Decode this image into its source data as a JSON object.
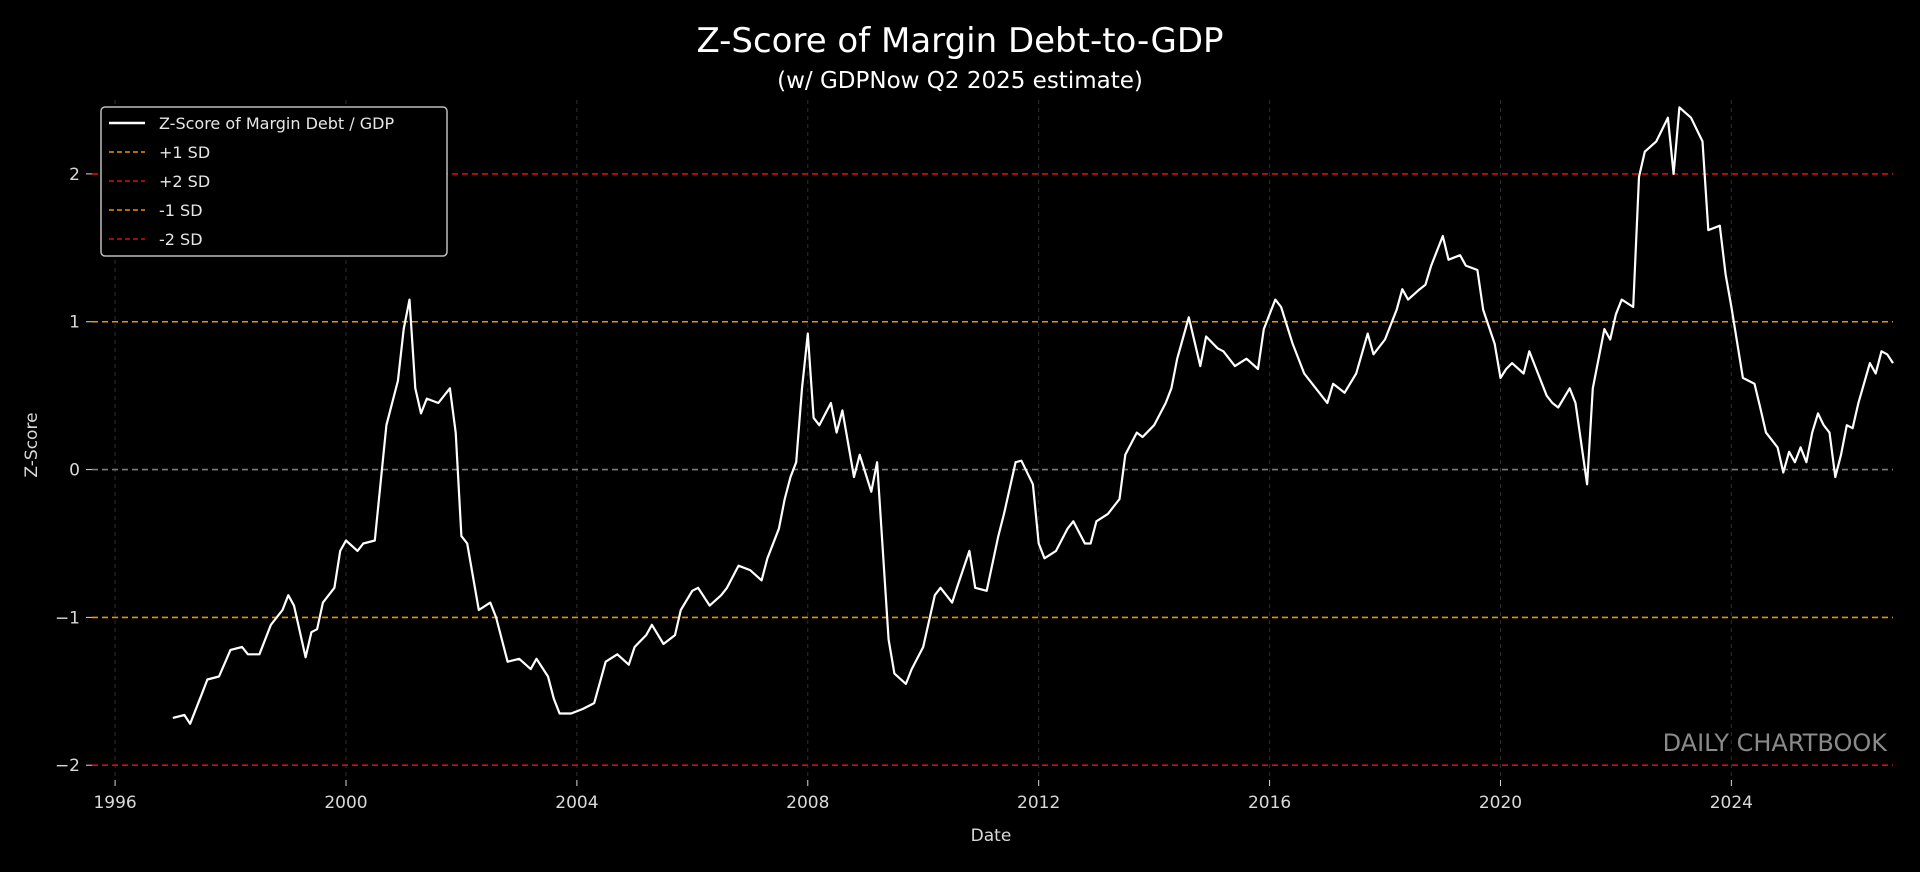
{
  "chart_data": {
    "type": "line",
    "title": "Z-Score of Margin Debt-to-GDP",
    "subtitle": "(w/ GDPNow Q2 2025 estimate)",
    "xlabel": "Date",
    "ylabel": "Z-Score",
    "xlim": [
      1995.6,
      2026.8
    ],
    "ylim": [
      -2.1,
      2.5
    ],
    "x_ticks": [
      "1996",
      "2000",
      "2004",
      "2008",
      "2012",
      "2016",
      "2020",
      "2024"
    ],
    "y_ticks": [
      "2",
      "1",
      "0",
      "−1",
      "−2"
    ],
    "grid": true,
    "legend_position": "top-left",
    "watermark": "DAILY CHARTBOOK",
    "colors": {
      "background": "#000000",
      "series": "#ffffff",
      "sd1": "#e69500",
      "sd2": "#d10f0f",
      "grid": "#555555"
    },
    "legend": [
      {
        "label": "Z-Score of Margin Debt / GDP",
        "style": "solid",
        "color": "#ffffff"
      },
      {
        "label": "+1 SD",
        "style": "dashed",
        "color": "#e69500"
      },
      {
        "label": "+2 SD",
        "style": "dashed",
        "color": "#d10f0f"
      },
      {
        "label": "-1 SD",
        "style": "dashed",
        "color": "#e69500"
      },
      {
        "label": "-2 SD",
        "style": "dashed",
        "color": "#d10f0f"
      }
    ],
    "reference_lines": [
      {
        "name": "+1 SD",
        "y": 1,
        "color": "#e69500"
      },
      {
        "name": "+2 SD",
        "y": 2,
        "color": "#d10f0f"
      },
      {
        "name": "-1 SD",
        "y": -1,
        "color": "#e69500"
      },
      {
        "name": "-2 SD",
        "y": -2,
        "color": "#d10f0f"
      },
      {
        "name": "zero",
        "y": 0,
        "color": "#7a7a7a"
      }
    ],
    "series": [
      {
        "name": "Z-Score of Margin Debt / GDP",
        "points": [
          [
            1997.0,
            -1.68
          ],
          [
            1997.2,
            -1.66
          ],
          [
            1997.3,
            -1.72
          ],
          [
            1997.5,
            -1.52
          ],
          [
            1997.6,
            -1.42
          ],
          [
            1997.8,
            -1.4
          ],
          [
            1998.0,
            -1.22
          ],
          [
            1998.2,
            -1.2
          ],
          [
            1998.3,
            -1.25
          ],
          [
            1998.5,
            -1.25
          ],
          [
            1998.7,
            -1.05
          ],
          [
            1998.9,
            -0.95
          ],
          [
            1999.0,
            -0.85
          ],
          [
            1999.1,
            -0.92
          ],
          [
            1999.3,
            -1.27
          ],
          [
            1999.4,
            -1.1
          ],
          [
            1999.5,
            -1.08
          ],
          [
            1999.6,
            -0.9
          ],
          [
            1999.8,
            -0.8
          ],
          [
            1999.9,
            -0.55
          ],
          [
            2000.0,
            -0.48
          ],
          [
            2000.2,
            -0.55
          ],
          [
            2000.3,
            -0.5
          ],
          [
            2000.5,
            -0.48
          ],
          [
            2000.7,
            0.3
          ],
          [
            2000.9,
            0.6
          ],
          [
            2001.0,
            0.95
          ],
          [
            2001.1,
            1.15
          ],
          [
            2001.2,
            0.55
          ],
          [
            2001.3,
            0.38
          ],
          [
            2001.4,
            0.48
          ],
          [
            2001.6,
            0.45
          ],
          [
            2001.8,
            0.55
          ],
          [
            2001.9,
            0.25
          ],
          [
            2002.0,
            -0.45
          ],
          [
            2002.1,
            -0.5
          ],
          [
            2002.3,
            -0.95
          ],
          [
            2002.5,
            -0.9
          ],
          [
            2002.6,
            -1.0
          ],
          [
            2002.8,
            -1.3
          ],
          [
            2003.0,
            -1.28
          ],
          [
            2003.2,
            -1.35
          ],
          [
            2003.3,
            -1.28
          ],
          [
            2003.5,
            -1.4
          ],
          [
            2003.6,
            -1.55
          ],
          [
            2003.7,
            -1.65
          ],
          [
            2003.9,
            -1.65
          ],
          [
            2004.1,
            -1.62
          ],
          [
            2004.3,
            -1.58
          ],
          [
            2004.5,
            -1.3
          ],
          [
            2004.7,
            -1.25
          ],
          [
            2004.9,
            -1.32
          ],
          [
            2005.0,
            -1.2
          ],
          [
            2005.2,
            -1.12
          ],
          [
            2005.3,
            -1.05
          ],
          [
            2005.5,
            -1.18
          ],
          [
            2005.7,
            -1.12
          ],
          [
            2005.8,
            -0.95
          ],
          [
            2006.0,
            -0.82
          ],
          [
            2006.1,
            -0.8
          ],
          [
            2006.3,
            -0.92
          ],
          [
            2006.5,
            -0.85
          ],
          [
            2006.6,
            -0.8
          ],
          [
            2006.8,
            -0.65
          ],
          [
            2007.0,
            -0.68
          ],
          [
            2007.2,
            -0.75
          ],
          [
            2007.3,
            -0.6
          ],
          [
            2007.5,
            -0.4
          ],
          [
            2007.6,
            -0.2
          ],
          [
            2007.7,
            -0.05
          ],
          [
            2007.8,
            0.05
          ],
          [
            2007.9,
            0.55
          ],
          [
            2008.0,
            0.92
          ],
          [
            2008.1,
            0.35
          ],
          [
            2008.2,
            0.3
          ],
          [
            2008.4,
            0.45
          ],
          [
            2008.5,
            0.25
          ],
          [
            2008.6,
            0.4
          ],
          [
            2008.8,
            -0.05
          ],
          [
            2008.9,
            0.1
          ],
          [
            2009.1,
            -0.15
          ],
          [
            2009.2,
            0.05
          ],
          [
            2009.4,
            -1.15
          ],
          [
            2009.5,
            -1.38
          ],
          [
            2009.7,
            -1.45
          ],
          [
            2009.8,
            -1.35
          ],
          [
            2010.0,
            -1.2
          ],
          [
            2010.2,
            -0.85
          ],
          [
            2010.3,
            -0.8
          ],
          [
            2010.5,
            -0.9
          ],
          [
            2010.6,
            -0.78
          ],
          [
            2010.8,
            -0.55
          ],
          [
            2010.9,
            -0.8
          ],
          [
            2011.1,
            -0.82
          ],
          [
            2011.3,
            -0.45
          ],
          [
            2011.4,
            -0.3
          ],
          [
            2011.6,
            0.05
          ],
          [
            2011.7,
            0.06
          ],
          [
            2011.9,
            -0.1
          ],
          [
            2012.0,
            -0.5
          ],
          [
            2012.1,
            -0.6
          ],
          [
            2012.3,
            -0.55
          ],
          [
            2012.5,
            -0.4
          ],
          [
            2012.6,
            -0.35
          ],
          [
            2012.8,
            -0.5
          ],
          [
            2012.9,
            -0.5
          ],
          [
            2013.0,
            -0.35
          ],
          [
            2013.2,
            -0.3
          ],
          [
            2013.4,
            -0.2
          ],
          [
            2013.5,
            0.1
          ],
          [
            2013.7,
            0.25
          ],
          [
            2013.8,
            0.22
          ],
          [
            2014.0,
            0.3
          ],
          [
            2014.2,
            0.45
          ],
          [
            2014.3,
            0.55
          ],
          [
            2014.4,
            0.75
          ],
          [
            2014.6,
            1.03
          ],
          [
            2014.8,
            0.7
          ],
          [
            2014.9,
            0.9
          ],
          [
            2015.1,
            0.82
          ],
          [
            2015.2,
            0.8
          ],
          [
            2015.4,
            0.7
          ],
          [
            2015.6,
            0.75
          ],
          [
            2015.8,
            0.68
          ],
          [
            2015.9,
            0.95
          ],
          [
            2016.1,
            1.15
          ],
          [
            2016.2,
            1.1
          ],
          [
            2016.4,
            0.85
          ],
          [
            2016.6,
            0.65
          ],
          [
            2016.8,
            0.55
          ],
          [
            2017.0,
            0.45
          ],
          [
            2017.1,
            0.58
          ],
          [
            2017.3,
            0.52
          ],
          [
            2017.5,
            0.65
          ],
          [
            2017.7,
            0.92
          ],
          [
            2017.8,
            0.78
          ],
          [
            2018.0,
            0.88
          ],
          [
            2018.2,
            1.08
          ],
          [
            2018.3,
            1.22
          ],
          [
            2018.4,
            1.15
          ],
          [
            2018.6,
            1.22
          ],
          [
            2018.7,
            1.25
          ],
          [
            2018.8,
            1.38
          ],
          [
            2019.0,
            1.58
          ],
          [
            2019.1,
            1.42
          ],
          [
            2019.3,
            1.45
          ],
          [
            2019.4,
            1.38
          ],
          [
            2019.6,
            1.35
          ],
          [
            2019.7,
            1.08
          ],
          [
            2019.9,
            0.85
          ],
          [
            2020.0,
            0.62
          ],
          [
            2020.1,
            0.68
          ],
          [
            2020.2,
            0.72
          ],
          [
            2020.4,
            0.65
          ],
          [
            2020.5,
            0.8
          ],
          [
            2020.6,
            0.7
          ],
          [
            2020.8,
            0.5
          ],
          [
            2020.9,
            0.45
          ],
          [
            2021.0,
            0.42
          ],
          [
            2021.2,
            0.55
          ],
          [
            2021.3,
            0.45
          ],
          [
            2021.5,
            -0.1
          ],
          [
            2021.6,
            0.55
          ],
          [
            2021.8,
            0.95
          ],
          [
            2021.9,
            0.88
          ],
          [
            2022.0,
            1.05
          ],
          [
            2022.1,
            1.15
          ],
          [
            2022.3,
            1.1
          ],
          [
            2022.4,
            1.98
          ],
          [
            2022.5,
            2.15
          ],
          [
            2022.7,
            2.22
          ],
          [
            2022.9,
            2.38
          ],
          [
            2023.0,
            2.0
          ],
          [
            2023.1,
            2.45
          ],
          [
            2023.3,
            2.38
          ],
          [
            2023.5,
            2.22
          ],
          [
            2023.6,
            1.62
          ],
          [
            2023.8,
            1.65
          ],
          [
            2023.9,
            1.32
          ],
          [
            2024.0,
            1.1
          ],
          [
            2024.2,
            0.62
          ],
          [
            2024.4,
            0.58
          ],
          [
            2024.5,
            0.42
          ],
          [
            2024.6,
            0.25
          ],
          [
            2024.8,
            0.15
          ],
          [
            2024.9,
            -0.02
          ],
          [
            2025.0,
            0.12
          ],
          [
            2025.1,
            0.05
          ],
          [
            2025.2,
            0.15
          ],
          [
            2025.3,
            0.05
          ],
          [
            2025.4,
            0.25
          ],
          [
            2025.5,
            0.38
          ],
          [
            2025.6,
            0.3
          ],
          [
            2025.7,
            0.25
          ],
          [
            2025.8,
            -0.05
          ],
          [
            2025.9,
            0.1
          ],
          [
            2026.0,
            0.3
          ],
          [
            2026.1,
            0.28
          ],
          [
            2026.2,
            0.45
          ],
          [
            2026.4,
            0.72
          ],
          [
            2026.5,
            0.65
          ],
          [
            2026.6,
            0.8
          ],
          [
            2026.7,
            0.78
          ],
          [
            2026.8,
            0.72
          ]
        ]
      }
    ]
  }
}
